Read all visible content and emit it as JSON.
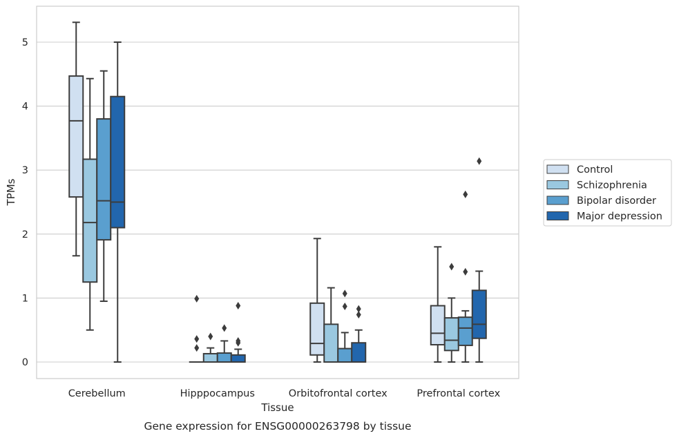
{
  "chart_data": {
    "type": "box",
    "caption": "Gene expression for ENSG00000263798 by tissue",
    "xlabel": "Tissue",
    "ylabel": "TPMs",
    "ylim": [
      -0.25,
      5.6
    ],
    "yticks": [
      0,
      1,
      2,
      3,
      4,
      5
    ],
    "grid": true,
    "legend_position": "right",
    "categories": [
      "Cerebellum",
      "Hipppocampus",
      "Orbitofrontal cortex",
      "Prefrontal cortex"
    ],
    "series": [
      {
        "name": "Control",
        "color": "#d0e0f1",
        "boxes": [
          {
            "whisker_low": 1.66,
            "q1": 2.58,
            "median": 3.77,
            "q3": 4.47,
            "whisker_high": 5.31,
            "outliers": []
          },
          {
            "whisker_low": 0,
            "q1": 0,
            "median": 0,
            "q3": 0,
            "whisker_high": 0,
            "outliers": [
              0.99,
              0.36,
              0.22
            ]
          },
          {
            "whisker_low": 0,
            "q1": 0.11,
            "median": 0.29,
            "q3": 0.92,
            "whisker_high": 1.93,
            "outliers": []
          },
          {
            "whisker_low": 0,
            "q1": 0.27,
            "median": 0.45,
            "q3": 0.88,
            "whisker_high": 1.8,
            "outliers": []
          }
        ]
      },
      {
        "name": "Schizophrenia",
        "color": "#9ac8e0",
        "boxes": [
          {
            "whisker_low": 0.5,
            "q1": 1.25,
            "median": 2.18,
            "q3": 3.17,
            "whisker_high": 4.43,
            "outliers": []
          },
          {
            "whisker_low": 0,
            "q1": 0,
            "median": 0,
            "q3": 0.13,
            "whisker_high": 0.22,
            "outliers": [
              0.4
            ]
          },
          {
            "whisker_low": 0,
            "q1": 0,
            "median": 0,
            "q3": 0.59,
            "whisker_high": 1.16,
            "outliers": []
          },
          {
            "whisker_low": 0,
            "q1": 0.18,
            "median": 0.34,
            "q3": 0.69,
            "whisker_high": 1.0,
            "outliers": [
              1.49
            ]
          }
        ]
      },
      {
        "name": "Bipolar disorder",
        "color": "#5a9fcf",
        "boxes": [
          {
            "whisker_low": 0.95,
            "q1": 1.91,
            "median": 2.52,
            "q3": 3.8,
            "whisker_high": 4.55,
            "outliers": []
          },
          {
            "whisker_low": 0,
            "q1": 0,
            "median": 0,
            "q3": 0.14,
            "whisker_high": 0.33,
            "outliers": [
              0.53
            ]
          },
          {
            "whisker_low": 0,
            "q1": 0,
            "median": 0,
            "q3": 0.21,
            "whisker_high": 0.46,
            "outliers": [
              1.07,
              0.87
            ]
          },
          {
            "whisker_low": 0,
            "q1": 0.26,
            "median": 0.53,
            "q3": 0.7,
            "whisker_high": 0.8,
            "outliers": [
              2.62,
              1.41
            ]
          }
        ]
      },
      {
        "name": "Major depression",
        "color": "#2266ad",
        "boxes": [
          {
            "whisker_low": 0,
            "q1": 2.1,
            "median": 2.5,
            "q3": 4.15,
            "whisker_high": 5.0,
            "outliers": []
          },
          {
            "whisker_low": 0,
            "q1": 0,
            "median": 0,
            "q3": 0.11,
            "whisker_high": 0.2,
            "outliers": [
              0.88,
              0.33,
              0.3
            ]
          },
          {
            "whisker_low": 0,
            "q1": 0,
            "median": 0,
            "q3": 0.3,
            "whisker_high": 0.5,
            "outliers": [
              0.83,
              0.74
            ]
          },
          {
            "whisker_low": 0,
            "q1": 0.37,
            "median": 0.59,
            "q3": 1.12,
            "whisker_high": 1.42,
            "outliers": [
              3.14
            ]
          }
        ]
      }
    ]
  }
}
